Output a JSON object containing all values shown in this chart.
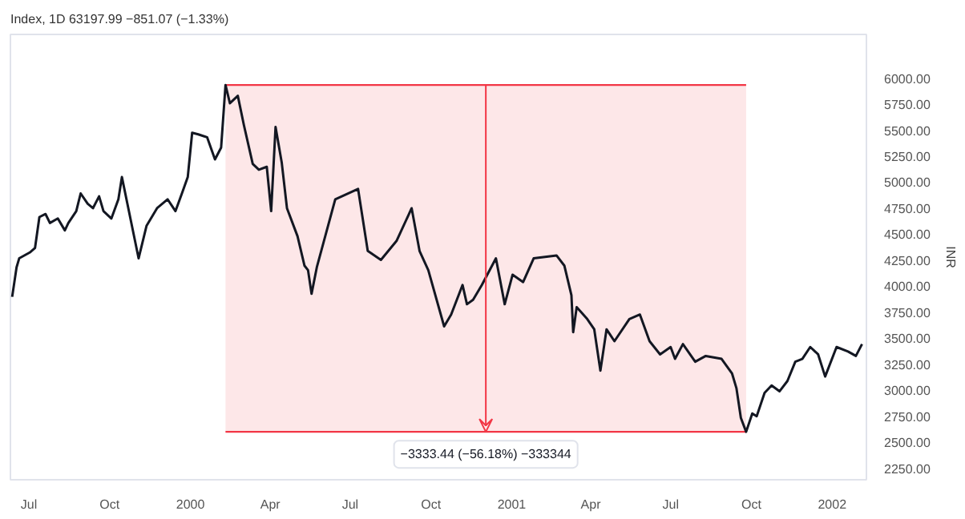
{
  "chart_data": {
    "type": "line",
    "title": "Index, 1D  63197.99  −851.07 (−1.33%)",
    "ylabel": "INR",
    "x": [
      "1999-06-12",
      "1999-06-17",
      "1999-06-20",
      "1999-07-02",
      "1999-07-08",
      "1999-07-13",
      "1999-07-20",
      "1999-07-25",
      "1999-08-03",
      "1999-08-11",
      "1999-08-15",
      "1999-08-24",
      "1999-08-29",
      "1999-09-06",
      "1999-09-12",
      "1999-09-19",
      "1999-09-24",
      "1999-10-03",
      "1999-10-11",
      "1999-10-15",
      "1999-11-03",
      "1999-11-12",
      "1999-11-24",
      "1999-12-06",
      "1999-12-15",
      "1999-12-23",
      "1999-12-29",
      "2000-01-03",
      "2000-01-10",
      "2000-01-20",
      "2000-01-29",
      "2000-02-05",
      "2000-02-10",
      "2000-02-15",
      "2000-02-24",
      "2000-03-02",
      "2000-03-12",
      "2000-03-19",
      "2000-03-28",
      "2000-04-02",
      "2000-04-07",
      "2000-04-14",
      "2000-04-20",
      "2000-05-02",
      "2000-05-10",
      "2000-05-14",
      "2000-05-18",
      "2000-05-24",
      "2000-06-14",
      "2000-07-10",
      "2000-07-21",
      "2000-08-05",
      "2000-08-23",
      "2000-09-09",
      "2000-09-18",
      "2000-09-28",
      "2000-10-16",
      "2000-10-24",
      "2000-11-06",
      "2000-11-11",
      "2000-11-18",
      "2000-11-28",
      "2000-12-14",
      "2000-12-24",
      "2001-01-02",
      "2001-01-14",
      "2001-01-26",
      "2001-02-21",
      "2001-03-02",
      "2001-03-10",
      "2001-03-12",
      "2001-03-16",
      "2001-03-28",
      "2001-04-05",
      "2001-04-12",
      "2001-04-19",
      "2001-04-28",
      "2001-05-15",
      "2001-05-27",
      "2001-06-07",
      "2001-06-19",
      "2001-07-01",
      "2001-07-06",
      "2001-07-15",
      "2001-07-29",
      "2001-08-10",
      "2001-08-28",
      "2001-09-09",
      "2001-09-14",
      "2001-09-19",
      "2001-09-25",
      "2001-10-02",
      "2001-10-07",
      "2001-10-16",
      "2001-10-24",
      "2001-11-02",
      "2001-11-11",
      "2001-11-20",
      "2001-11-28",
      "2001-12-07",
      "2001-12-16",
      "2001-12-24",
      "2002-01-06",
      "2002-01-19",
      "2002-01-28",
      "2002-02-04"
    ],
    "series": [
      {
        "color": "#131722",
        "values": [
          3898,
          4182,
          4268,
          4324,
          4367,
          4665,
          4694,
          4608,
          4651,
          4537,
          4608,
          4722,
          4892,
          4793,
          4750,
          4864,
          4722,
          4651,
          4836,
          5049,
          4268,
          4580,
          4750,
          4836,
          4722,
          4907,
          5049,
          5475,
          5460,
          5432,
          5219,
          5333,
          5934,
          5759,
          5830,
          5546,
          5176,
          5120,
          5148,
          4722,
          5531,
          5191,
          4750,
          4481,
          4197,
          4154,
          3927,
          4182,
          4836,
          4935,
          4339,
          4253,
          4438,
          4750,
          4339,
          4154,
          3614,
          3728,
          4012,
          3827,
          3870,
          4012,
          4268,
          3827,
          4111,
          4040,
          4268,
          4296,
          4197,
          3913,
          3558,
          3799,
          3685,
          3586,
          3188,
          3586,
          3472,
          3685,
          3728,
          3472,
          3345,
          3416,
          3302,
          3444,
          3274,
          3330,
          3302,
          3160,
          3018,
          2734,
          2601,
          2777,
          2750,
          2975,
          3046,
          2990,
          3089,
          3274,
          3302,
          3416,
          3345,
          3132,
          3416,
          3373,
          3330,
          3444
        ]
      }
    ],
    "xlim": [
      "1999-06-10",
      "2002-02-09"
    ],
    "xticks": [
      {
        "value": "1999-07-01",
        "label": "Jul"
      },
      {
        "value": "1999-10-01",
        "label": "Oct"
      },
      {
        "value": "2000-01-01",
        "label": "2000"
      },
      {
        "value": "2000-04-01",
        "label": "Apr"
      },
      {
        "value": "2000-07-01",
        "label": "Jul"
      },
      {
        "value": "2000-10-01",
        "label": "Oct"
      },
      {
        "value": "2001-01-01",
        "label": "2001"
      },
      {
        "value": "2001-04-01",
        "label": "Apr"
      },
      {
        "value": "2001-07-01",
        "label": "Jul"
      },
      {
        "value": "2001-10-01",
        "label": "Oct"
      },
      {
        "value": "2002-01-01",
        "label": "2002"
      }
    ],
    "ylim": [
      2140,
      6420
    ],
    "yticks": [
      {
        "value": 2250,
        "label": "2250.00"
      },
      {
        "value": 2500,
        "label": "2500.00"
      },
      {
        "value": 2750,
        "label": "2750.00"
      },
      {
        "value": 3000,
        "label": "3000.00"
      },
      {
        "value": 3250,
        "label": "3250.00"
      },
      {
        "value": 3500,
        "label": "3500.00"
      },
      {
        "value": 3750,
        "label": "3750.00"
      },
      {
        "value": 4000,
        "label": "4000.00"
      },
      {
        "value": 4250,
        "label": "4250.00"
      },
      {
        "value": 4500,
        "label": "4500.00"
      },
      {
        "value": 4750,
        "label": "4750.00"
      },
      {
        "value": 5000,
        "label": "5000.00"
      },
      {
        "value": 5250,
        "label": "5250.00"
      },
      {
        "value": 5500,
        "label": "5500.00"
      },
      {
        "value": 5750,
        "label": "5750.00"
      },
      {
        "value": 6000,
        "label": "6000.00"
      }
    ],
    "bands": [
      {
        "axis": "x",
        "from": "2000-02-10",
        "to": "2001-09-25",
        "color": "#fde7e8"
      }
    ],
    "ref_lines": [
      {
        "axis": "y",
        "value": 5934,
        "color": "#f23645"
      },
      {
        "axis": "y",
        "value": 2600.56,
        "color": "#f23645"
      }
    ],
    "annotations": [
      "−3333.44 (−56.18%) −333344"
    ],
    "grid": false,
    "marker": "none",
    "line_style": "solid"
  }
}
